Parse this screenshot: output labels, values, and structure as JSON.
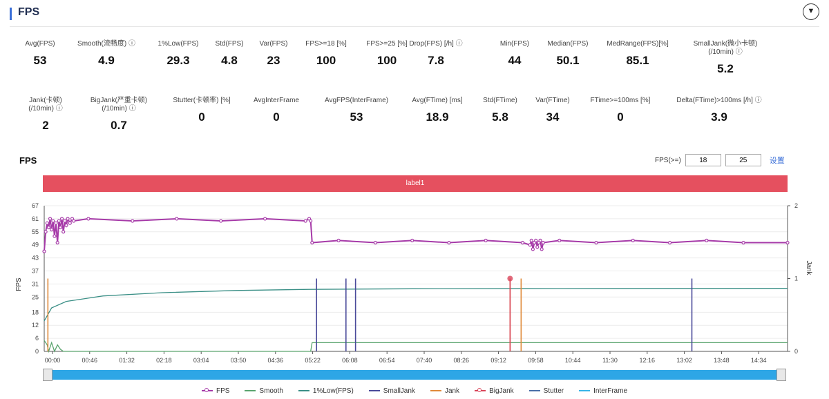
{
  "header": {
    "title": "FPS",
    "collapse_icon": "chevron-down-icon"
  },
  "metrics_row1": [
    {
      "label": "Avg(FPS)",
      "value": "53"
    },
    {
      "label": "Smooth(流畅度) ⓘ",
      "value": "4.9"
    },
    {
      "label": "1%Low(FPS)",
      "value": "29.3"
    },
    {
      "label": "Std(FPS)",
      "value": "4.8"
    },
    {
      "label": "Var(FPS)",
      "value": "23"
    },
    {
      "label": "FPS>=18 [%]",
      "value": "100"
    },
    {
      "label": "FPS>=25 [%]",
      "value": "100"
    },
    {
      "label": "Drop(FPS) [/h] ⓘ",
      "value": "7.8"
    },
    {
      "label": "Min(FPS)",
      "value": "44"
    },
    {
      "label": "Median(FPS)",
      "value": "50.1"
    },
    {
      "label": "MedRange(FPS)[%]",
      "value": "85.1"
    },
    {
      "label": "SmallJank(微小卡顿)\n(/10min) ⓘ",
      "value": "5.2"
    }
  ],
  "metrics_row2": [
    {
      "label": "Jank(卡顿)\n(/10min) ⓘ",
      "value": "2"
    },
    {
      "label": "BigJank(严重卡顿)\n(/10min) ⓘ",
      "value": "0.7"
    },
    {
      "label": "Stutter(卡顿率) [%]",
      "value": "0"
    },
    {
      "label": "AvgInterFrame",
      "value": "0"
    },
    {
      "label": "AvgFPS(InterFrame)",
      "value": "53"
    },
    {
      "label": "Avg(FTime) [ms]",
      "value": "18.9"
    },
    {
      "label": "Std(FTime)",
      "value": "5.8"
    },
    {
      "label": "Var(FTime)",
      "value": "34"
    },
    {
      "label": "FTime>=100ms [%]",
      "value": "0"
    },
    {
      "label": "Delta(FTime)>100ms [/h] ⓘ",
      "value": "3.9"
    }
  ],
  "chart_section": {
    "title": "FPS",
    "filter_label": "FPS(>=)",
    "filter_value_1": "18",
    "filter_value_2": "25",
    "set_button": "设置",
    "label_band": "label1"
  },
  "chart_data": {
    "type": "line",
    "ylabel": "FPS",
    "y2label": "Jank",
    "ylim": [
      0,
      67
    ],
    "y2lim": [
      0,
      2
    ],
    "yticks": [
      0,
      6,
      12,
      18,
      25,
      31,
      37,
      43,
      49,
      55,
      61,
      67
    ],
    "y2ticks": [
      0,
      1,
      2
    ],
    "xlim_seconds": [
      0,
      1010
    ],
    "xticks": [
      "00:00",
      "00:46",
      "01:32",
      "02:18",
      "03:04",
      "03:50",
      "04:36",
      "05:22",
      "06:08",
      "06:54",
      "07:40",
      "08:26",
      "09:12",
      "09:58",
      "10:44",
      "11:30",
      "12:16",
      "13:02",
      "13:48",
      "14:34"
    ],
    "series": [
      {
        "name": "FPS",
        "color": "#a63aa8",
        "axis": "left",
        "points": [
          [
            0,
            46
          ],
          [
            2,
            55
          ],
          [
            4,
            59
          ],
          [
            6,
            57
          ],
          [
            8,
            61
          ],
          [
            10,
            56
          ],
          [
            12,
            60
          ],
          [
            14,
            53
          ],
          [
            16,
            59
          ],
          [
            18,
            50
          ],
          [
            20,
            60
          ],
          [
            22,
            57
          ],
          [
            24,
            61
          ],
          [
            26,
            55
          ],
          [
            28,
            60
          ],
          [
            30,
            58
          ],
          [
            32,
            61
          ],
          [
            35,
            59
          ],
          [
            38,
            61
          ],
          [
            40,
            60
          ],
          [
            60,
            61
          ],
          [
            120,
            60
          ],
          [
            180,
            61
          ],
          [
            240,
            60
          ],
          [
            300,
            61
          ],
          [
            355,
            60
          ],
          [
            360,
            61
          ],
          [
            362,
            60
          ],
          [
            364,
            50
          ],
          [
            400,
            51
          ],
          [
            450,
            50
          ],
          [
            500,
            51
          ],
          [
            550,
            50
          ],
          [
            600,
            51
          ],
          [
            650,
            50
          ],
          [
            660,
            49
          ],
          [
            662,
            51
          ],
          [
            664,
            47
          ],
          [
            666,
            50
          ],
          [
            668,
            51
          ],
          [
            670,
            48
          ],
          [
            672,
            50
          ],
          [
            674,
            51
          ],
          [
            676,
            47
          ],
          [
            678,
            50
          ],
          [
            700,
            51
          ],
          [
            750,
            50
          ],
          [
            800,
            51
          ],
          [
            850,
            50
          ],
          [
            900,
            51
          ],
          [
            950,
            50
          ],
          [
            1010,
            50
          ]
        ]
      },
      {
        "name": "Smooth",
        "color": "#5aa46e",
        "axis": "left",
        "points": [
          [
            0,
            5
          ],
          [
            4,
            3
          ],
          [
            6,
            0
          ],
          [
            10,
            4
          ],
          [
            14,
            0
          ],
          [
            18,
            3
          ],
          [
            22,
            1
          ],
          [
            26,
            0
          ],
          [
            300,
            0
          ],
          [
            362,
            0
          ],
          [
            364,
            4
          ],
          [
            1010,
            4
          ]
        ]
      },
      {
        "name": "1%Low(FPS)",
        "color": "#3a8f86",
        "axis": "left",
        "points": [
          [
            0,
            14
          ],
          [
            10,
            20
          ],
          [
            30,
            23
          ],
          [
            80,
            25.5
          ],
          [
            160,
            27
          ],
          [
            260,
            28
          ],
          [
            360,
            28.5
          ],
          [
            500,
            28.8
          ],
          [
            700,
            28.9
          ],
          [
            1010,
            29
          ]
        ]
      },
      {
        "name": "SmallJank",
        "color": "#4a4a9a",
        "axis": "right",
        "events": [
          370,
          410,
          423,
          880
        ]
      },
      {
        "name": "Jank",
        "color": "#e08a3a",
        "axis": "right",
        "events": [
          5,
          633,
          648
        ]
      },
      {
        "name": "BigJank",
        "color": "#d9455a",
        "axis": "right",
        "events": [
          633
        ]
      },
      {
        "name": "Stutter",
        "color": "#4a6fa8",
        "axis": "right",
        "events": []
      },
      {
        "name": "InterFrame",
        "color": "#38b6e8",
        "axis": "right",
        "events": []
      }
    ],
    "grid": true,
    "legend": "bottom-center"
  },
  "legend_items": [
    {
      "name": "FPS",
      "color": "#a63aa8",
      "marker": "dot"
    },
    {
      "name": "Smooth",
      "color": "#5aa46e",
      "marker": "line"
    },
    {
      "name": "1%Low(FPS)",
      "color": "#3a8f86",
      "marker": "line"
    },
    {
      "name": "SmallJank",
      "color": "#4a4a9a",
      "marker": "line"
    },
    {
      "name": "Jank",
      "color": "#e08a3a",
      "marker": "line"
    },
    {
      "name": "BigJank",
      "color": "#d9455a",
      "marker": "dot"
    },
    {
      "name": "Stutter",
      "color": "#4a6fa8",
      "marker": "line"
    },
    {
      "name": "InterFrame",
      "color": "#38b6e8",
      "marker": "line"
    }
  ]
}
